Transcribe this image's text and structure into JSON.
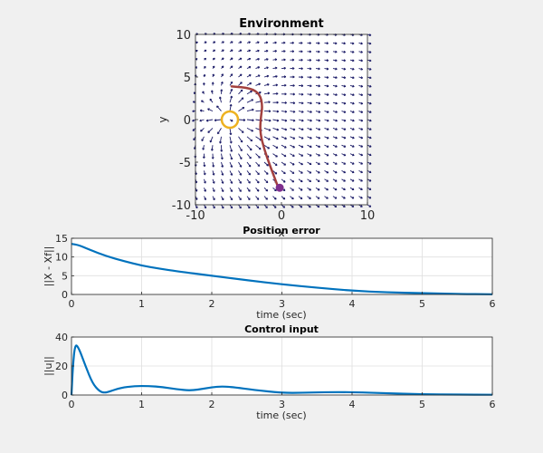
{
  "chart_data": [
    {
      "type": "quiver",
      "title": "Environment",
      "xlabel": "x",
      "ylabel": "y",
      "xlim": [
        -10,
        10
      ],
      "ylim": [
        -10,
        10
      ],
      "xticks": [
        -10,
        0,
        10
      ],
      "yticks": [
        -10,
        -5,
        0,
        5,
        10
      ],
      "grid": false,
      "field_color": "#1a1a66",
      "trajectory": {
        "color": "#a2403e",
        "points": [
          [
            -5.8,
            3.9
          ],
          [
            -3.6,
            3.7
          ],
          [
            -2.5,
            3.0
          ],
          [
            -2.2,
            1.6
          ],
          [
            -2.4,
            0.3
          ],
          [
            -2.5,
            -1.5
          ],
          [
            -2.0,
            -3.5
          ],
          [
            -1.3,
            -5.5
          ],
          [
            -0.4,
            -7.9
          ]
        ]
      },
      "start_marker": {
        "x": -0.2,
        "y": -8.0,
        "color": "#7e2f8e"
      },
      "circle": {
        "x": -6.0,
        "y": 0.0,
        "color": "#edb120"
      }
    },
    {
      "type": "line",
      "title": "Position error",
      "xlabel": "time (sec)",
      "ylabel": "||X - Xf||",
      "xlim": [
        0,
        6
      ],
      "ylim": [
        0,
        15
      ],
      "xticks": [
        0,
        1,
        2,
        3,
        4,
        5,
        6
      ],
      "yticks": [
        0,
        5,
        10,
        15
      ],
      "grid": true,
      "series": [
        {
          "color": "#0072bd",
          "x": [
            0,
            0.1,
            0.25,
            0.5,
            0.75,
            1.0,
            1.25,
            1.5,
            2.0,
            2.5,
            3.0,
            3.5,
            4.0,
            4.5,
            5.0,
            5.5,
            6.0
          ],
          "values": [
            13.5,
            13.2,
            12.0,
            10.2,
            8.9,
            7.7,
            6.9,
            6.2,
            5.0,
            3.8,
            2.7,
            1.8,
            1.0,
            0.55,
            0.35,
            0.12,
            0.05
          ]
        }
      ]
    },
    {
      "type": "line",
      "title": "Control input",
      "xlabel": "time (sec)",
      "ylabel": "||u||",
      "xlim": [
        0,
        6
      ],
      "ylim": [
        0,
        40
      ],
      "xticks": [
        0,
        1,
        2,
        3,
        4,
        5,
        6
      ],
      "yticks": [
        0,
        20,
        40
      ],
      "grid": true,
      "series": [
        {
          "color": "#0072bd",
          "x": [
            0,
            0.02,
            0.05,
            0.1,
            0.2,
            0.3,
            0.4,
            0.47,
            0.55,
            0.7,
            0.9,
            1.1,
            1.3,
            1.5,
            1.7,
            1.9,
            2.1,
            2.3,
            2.6,
            3.0,
            3.3,
            3.6,
            4.0,
            4.5,
            5.0,
            5.5,
            6.0
          ],
          "values": [
            0,
            20,
            35,
            33,
            20,
            8,
            2.5,
            1.5,
            2.5,
            5,
            6.2,
            6.2,
            5.5,
            4.0,
            3.0,
            4.5,
            6.0,
            5.5,
            3.5,
            1.5,
            1.5,
            2.0,
            2.0,
            1.2,
            0.5,
            0.3,
            0.2
          ]
        }
      ]
    }
  ]
}
